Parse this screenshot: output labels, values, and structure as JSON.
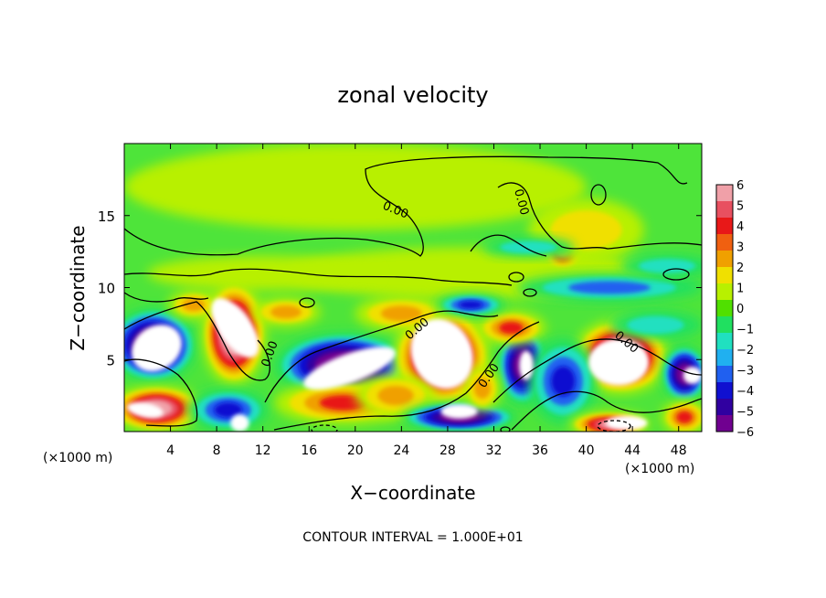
{
  "chart_data": {
    "type": "heatmap",
    "title": "zonal velocity",
    "xlabel": "X−coordinate",
    "ylabel": "Z−coordinate",
    "x_unit_left": "(×1000 m)",
    "x_unit_right": "(×1000 m)",
    "footer": "CONTOUR INTERVAL = 1.000E+01",
    "xlim": [
      0,
      50
    ],
    "ylim": [
      0,
      20
    ],
    "x_ticks": [
      4,
      8,
      12,
      16,
      20,
      24,
      28,
      32,
      36,
      40,
      44,
      48
    ],
    "y_ticks": [
      5,
      10,
      15
    ],
    "contour_labels": [
      "0.00",
      "0.00",
      "0.00",
      "0.00",
      "0.00",
      "0.00"
    ],
    "colorbar": {
      "ticks": [
        6,
        5,
        4,
        3,
        2,
        1,
        0,
        -1,
        -2,
        -3,
        -4,
        -5,
        -6
      ],
      "colors": [
        "#f0a0a8",
        "#e85060",
        "#e81818",
        "#f06010",
        "#f0a000",
        "#f0e000",
        "#b8f000",
        "#50e000",
        "#20e060",
        "#20e0c0",
        "#20b0f0",
        "#2060f0",
        "#1010d0",
        "#3000a0",
        "#700090"
      ]
    },
    "fields": {
      "background": "#4ee43a",
      "blobs": [
        {
          "x": 20,
          "z": 17,
          "rx": 20,
          "rz": 3.0,
          "v": 0.4
        },
        {
          "x": 30,
          "z": 11,
          "rx": 16,
          "rz": 1.8,
          "v": 1.2
        },
        {
          "x": 12,
          "z": 11,
          "rx": 10,
          "rz": 1.2,
          "v": 0.9
        },
        {
          "x": 38,
          "z": 12.5,
          "rx": 1.8,
          "rz": 1.3,
          "v": 4.5
        },
        {
          "x": 40,
          "z": 14,
          "rx": 5,
          "rz": 2.2,
          "v": 2.0
        },
        {
          "x": 42,
          "z": 10,
          "rx": 8,
          "rz": 1.0,
          "v": -2.5
        },
        {
          "x": 35,
          "z": 12.8,
          "rx": 4,
          "rz": 0.7,
          "v": -1.8
        },
        {
          "x": 47,
          "z": 11.5,
          "rx": 4,
          "rz": 0.8,
          "v": -1.6
        },
        {
          "x": 2.5,
          "z": 6.0,
          "rx": 3.8,
          "rz": 2.6,
          "v": -7.5
        },
        {
          "x": 9.5,
          "z": 6.8,
          "rx": 2.8,
          "rz": 3.6,
          "v": 7.5
        },
        {
          "x": 2.8,
          "z": 1.6,
          "rx": 4.0,
          "rz": 1.6,
          "v": 7.0
        },
        {
          "x": 9.0,
          "z": 1.5,
          "rx": 3.5,
          "rz": 1.5,
          "v": -4.0
        },
        {
          "x": 19.0,
          "z": 4.6,
          "rx": 6.0,
          "rz": 2.3,
          "v": -7.5
        },
        {
          "x": 19.0,
          "z": 2.0,
          "rx": 6.0,
          "rz": 1.5,
          "v": 3.5
        },
        {
          "x": 27.5,
          "z": 5.2,
          "rx": 4.2,
          "rz": 3.4,
          "v": 7.5
        },
        {
          "x": 23.5,
          "z": 2.5,
          "rx": 3.5,
          "rz": 1.5,
          "v": 3.0
        },
        {
          "x": 29.0,
          "z": 1.0,
          "rx": 5.0,
          "rz": 1.0,
          "v": -6.5
        },
        {
          "x": 34.5,
          "z": 4.6,
          "rx": 2.2,
          "rz": 2.8,
          "v": -7.0
        },
        {
          "x": 33.5,
          "z": 7.2,
          "rx": 3.0,
          "rz": 1.2,
          "v": 4.0
        },
        {
          "x": 31.0,
          "z": 3.0,
          "rx": 1.6,
          "rz": 1.6,
          "v": 3.0
        },
        {
          "x": 43.0,
          "z": 5.2,
          "rx": 4.2,
          "rz": 2.6,
          "v": 7.5
        },
        {
          "x": 38.0,
          "z": 3.5,
          "rx": 3.0,
          "rz": 3.0,
          "v": -4.0
        },
        {
          "x": 48.5,
          "z": 4.0,
          "rx": 2.0,
          "rz": 2.0,
          "v": -6.5
        },
        {
          "x": 48.5,
          "z": 1.0,
          "rx": 2.0,
          "rz": 1.2,
          "v": 3.5
        },
        {
          "x": 42.0,
          "z": 0.5,
          "rx": 3.5,
          "rz": 0.9,
          "v": 6.0
        },
        {
          "x": 6.0,
          "z": 8.8,
          "rx": 2.2,
          "rz": 1.0,
          "v": 3.0
        },
        {
          "x": 14.0,
          "z": 8.3,
          "rx": 3.0,
          "rz": 1.0,
          "v": 2.5
        },
        {
          "x": 24.0,
          "z": 8.2,
          "rx": 4.0,
          "rz": 1.2,
          "v": 3.0
        },
        {
          "x": 30.0,
          "z": 8.8,
          "rx": 3.0,
          "rz": 0.8,
          "v": -3.5
        },
        {
          "x": 46.0,
          "z": 7.4,
          "rx": 4.0,
          "rz": 1.0,
          "v": -2.0
        }
      ],
      "white_spots": [
        {
          "x": 2.8,
          "z": 5.8,
          "rx": 2.3,
          "rz": 1.5,
          "rot": -35
        },
        {
          "x": 9.6,
          "z": 7.2,
          "rx": 1.4,
          "rz": 2.4,
          "rot": -35
        },
        {
          "x": 1.8,
          "z": 1.5,
          "rx": 1.6,
          "rz": 0.5,
          "rot": 10
        },
        {
          "x": 19.5,
          "z": 4.4,
          "rx": 4.2,
          "rz": 1.0,
          "rot": -20
        },
        {
          "x": 27.5,
          "z": 5.4,
          "rx": 2.6,
          "rz": 2.5,
          "rot": -25
        },
        {
          "x": 29.0,
          "z": 1.4,
          "rx": 1.6,
          "rz": 0.5,
          "rot": 0
        },
        {
          "x": 34.8,
          "z": 4.6,
          "rx": 0.6,
          "rz": 1.0,
          "rot": 0
        },
        {
          "x": 42.8,
          "z": 4.8,
          "rx": 2.6,
          "rz": 1.6,
          "rot": 0
        },
        {
          "x": 49.2,
          "z": 3.9,
          "rx": 0.8,
          "rz": 0.6,
          "rot": 0
        },
        {
          "x": 10.0,
          "z": 0.6,
          "rx": 0.8,
          "rz": 0.6,
          "rot": 0
        },
        {
          "x": 43.5,
          "z": 0.6,
          "rx": 1.8,
          "rz": 0.5,
          "rot": 0
        }
      ]
    }
  }
}
